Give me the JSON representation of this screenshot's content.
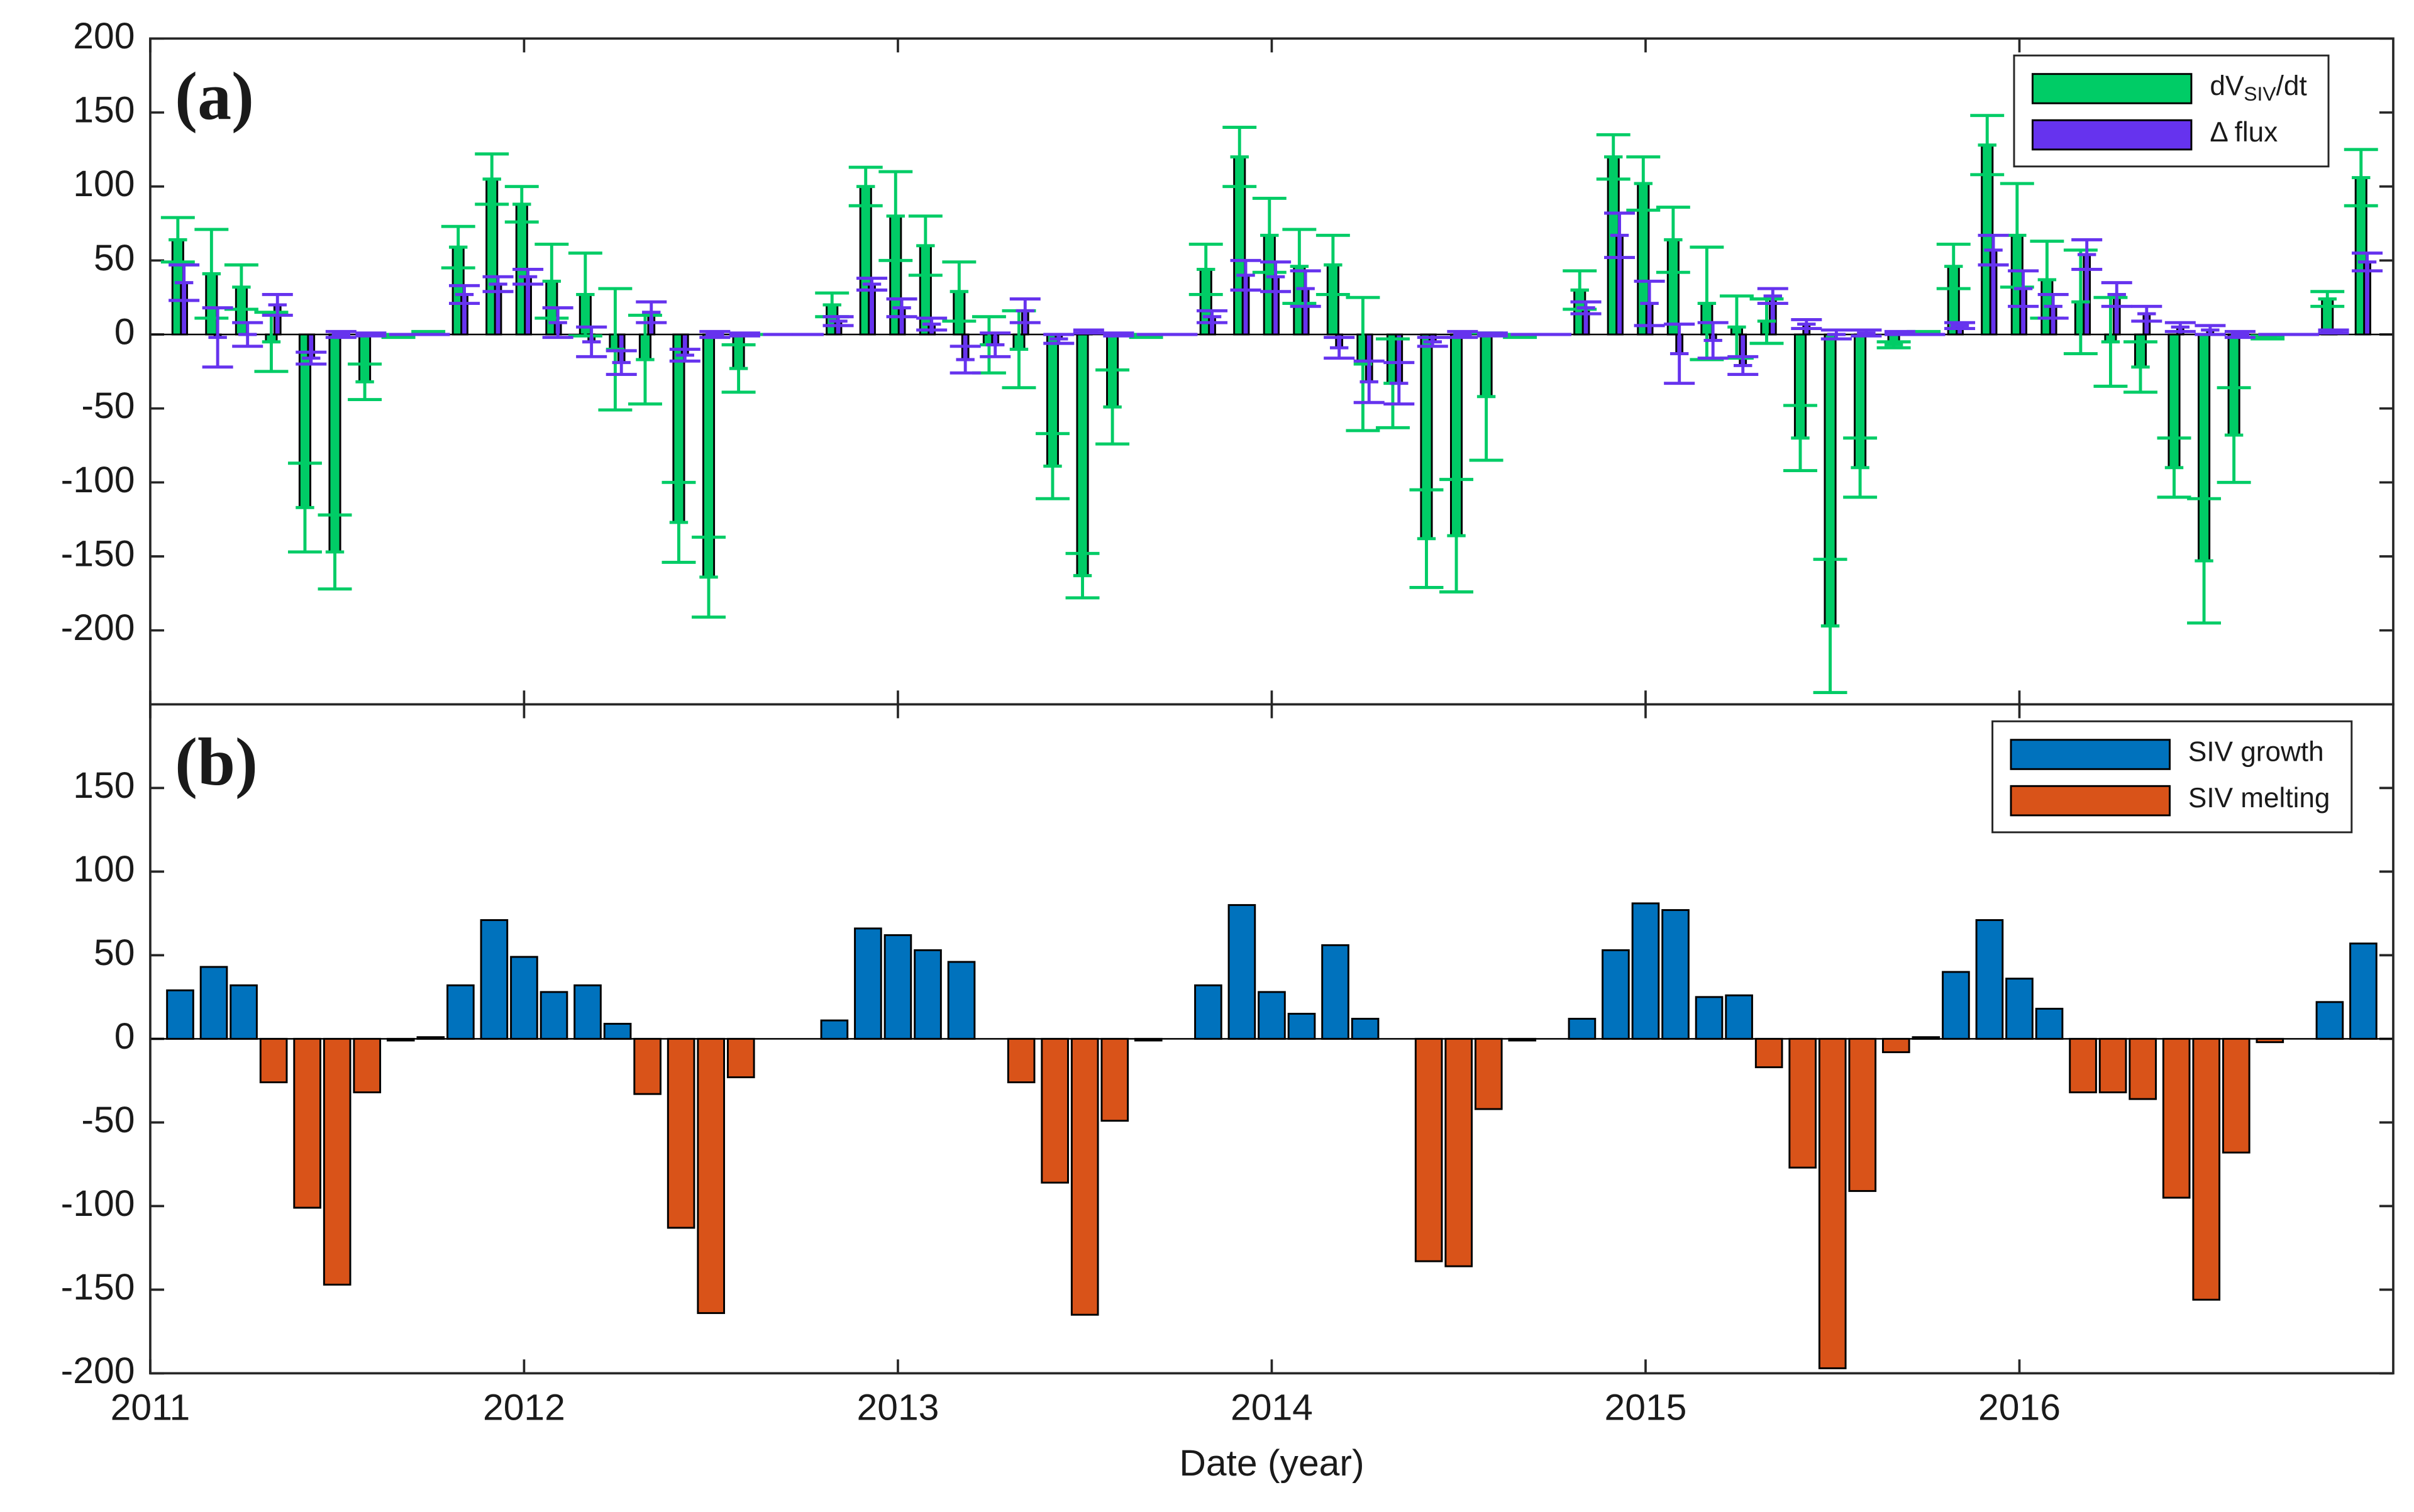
{
  "chart_data": [
    {
      "type": "bar",
      "title": "(a)",
      "legend": "upper right",
      "x": [
        2011.08,
        2011.17,
        2011.25,
        2011.33,
        2011.42,
        2011.5,
        2011.58,
        2011.67,
        2011.75,
        2011.83,
        2011.92,
        2012,
        2012.08,
        2012.17,
        2012.25,
        2012.33,
        2012.42,
        2012.5,
        2012.58,
        2012.67,
        2012.75,
        2012.83,
        2012.92,
        2013,
        2013.08,
        2013.17,
        2013.25,
        2013.33,
        2013.42,
        2013.5,
        2013.58,
        2013.67,
        2013.75,
        2013.83,
        2013.92,
        2014,
        2014.08,
        2014.17,
        2014.25,
        2014.33,
        2014.42,
        2014.5,
        2014.58,
        2014.67,
        2014.75,
        2014.83,
        2014.92,
        2015,
        2015.08,
        2015.17,
        2015.25,
        2015.33,
        2015.42,
        2015.5,
        2015.58,
        2015.67,
        2015.75,
        2015.83,
        2015.92,
        2016,
        2016.08,
        2016.17,
        2016.25,
        2016.33,
        2016.42,
        2016.5,
        2016.58,
        2016.67,
        2016.75,
        2016.83,
        2016.92
      ],
      "xlim": [
        2011,
        2017
      ],
      "ylim": [
        -250,
        200
      ],
      "yticks": [
        -200,
        -150,
        -100,
        -50,
        0,
        50,
        100,
        150,
        200
      ],
      "series": [
        {
          "name": "dVSIV/dt",
          "color": "#00cc66",
          "values": [
            64,
            41,
            32,
            -5,
            -117,
            -147,
            -32,
            -1,
            1,
            59,
            105,
            88,
            36,
            27,
            -10,
            -17,
            -127,
            -164,
            -23,
            0,
            0,
            20,
            100,
            80,
            60,
            29,
            -7,
            -10,
            -89,
            -163,
            -49,
            -1,
            0,
            44,
            120,
            67,
            46,
            47,
            -20,
            -33,
            -138,
            -136,
            -42,
            -1,
            0,
            30,
            120,
            102,
            64,
            21,
            5,
            9,
            -70,
            -197,
            -90,
            -7,
            1,
            46,
            128,
            67,
            37,
            22,
            -5,
            -22,
            -90,
            -153,
            -68,
            -2,
            0,
            24,
            106
          ],
          "errors": [
            15,
            30,
            15,
            20,
            30,
            25,
            12,
            1,
            1,
            14,
            17,
            12,
            25,
            28,
            41,
            30,
            27,
            27,
            16,
            0,
            0,
            8,
            13,
            30,
            20,
            20,
            19,
            26,
            22,
            15,
            25,
            1,
            0,
            17,
            20,
            25,
            25,
            20,
            45,
            30,
            33,
            38,
            43,
            1,
            0,
            13,
            15,
            18,
            22,
            38,
            21,
            15,
            22,
            45,
            20,
            2,
            1,
            15,
            20,
            35,
            26,
            35,
            30,
            17,
            20,
            42,
            32,
            1,
            0,
            5,
            19
          ]
        },
        {
          "name": "Δ flux",
          "color": "#6633ee",
          "values": [
            35,
            -2,
            0,
            20,
            -16,
            0,
            0,
            0,
            0,
            27,
            34,
            39,
            8,
            -5,
            -19,
            15,
            -14,
            0,
            0,
            0,
            0,
            9,
            34,
            18,
            7,
            -17,
            -7,
            16,
            -3,
            2,
            0,
            0,
            0,
            12,
            40,
            39,
            31,
            -9,
            -32,
            -33,
            -5,
            0,
            0,
            0,
            0,
            18,
            67,
            21,
            -13,
            -4,
            -21,
            26,
            7,
            0,
            1,
            1,
            0,
            6,
            57,
            31,
            19,
            54,
            27,
            14,
            5,
            3,
            0,
            0,
            0,
            2,
            49
          ],
          "errors": [
            12,
            20,
            8,
            7,
            4,
            2,
            1,
            0,
            0,
            6,
            5,
            5,
            10,
            10,
            8,
            7,
            4,
            2,
            1,
            0,
            0,
            3,
            4,
            6,
            4,
            9,
            8,
            8,
            3,
            1,
            1,
            0,
            0,
            4,
            10,
            10,
            12,
            7,
            14,
            14,
            3,
            2,
            1,
            0,
            0,
            4,
            15,
            15,
            20,
            12,
            6,
            5,
            3,
            3,
            2,
            1,
            0,
            2,
            10,
            12,
            8,
            10,
            8,
            5,
            3,
            3,
            2,
            0,
            0,
            1,
            6
          ]
        }
      ]
    },
    {
      "type": "bar",
      "title": "(b)",
      "legend": "upper right",
      "x_label": "Date (year)",
      "x": [
        2011.08,
        2011.17,
        2011.25,
        2011.33,
        2011.42,
        2011.5,
        2011.58,
        2011.67,
        2011.75,
        2011.83,
        2011.92,
        2012,
        2012.08,
        2012.17,
        2012.25,
        2012.33,
        2012.42,
        2012.5,
        2012.58,
        2012.67,
        2012.75,
        2012.83,
        2012.92,
        2013,
        2013.08,
        2013.17,
        2013.25,
        2013.33,
        2013.42,
        2013.5,
        2013.58,
        2013.67,
        2013.75,
        2013.83,
        2013.92,
        2014,
        2014.08,
        2014.17,
        2014.25,
        2014.33,
        2014.42,
        2014.5,
        2014.58,
        2014.67,
        2014.75,
        2014.83,
        2014.92,
        2015,
        2015.08,
        2015.17,
        2015.25,
        2015.33,
        2015.42,
        2015.5,
        2015.58,
        2015.67,
        2015.75,
        2015.83,
        2015.92,
        2016,
        2016.08,
        2016.17,
        2016.25,
        2016.33,
        2016.42,
        2016.5,
        2016.58,
        2016.67,
        2016.75,
        2016.83,
        2016.92
      ],
      "xlim": [
        2011,
        2017
      ],
      "xticks": [
        2011,
        2012,
        2013,
        2014,
        2015,
        2016
      ],
      "ylim": [
        -200,
        200
      ],
      "yticks": [
        -200,
        -150,
        -100,
        -50,
        0,
        50,
        100,
        150
      ],
      "series": [
        {
          "name": "SIV growth",
          "color": "#0072bd",
          "values": [
            29,
            43,
            32,
            null,
            null,
            null,
            null,
            null,
            1,
            32,
            71,
            49,
            28,
            32,
            9,
            null,
            null,
            null,
            null,
            0,
            0,
            11,
            66,
            62,
            53,
            46,
            0,
            null,
            null,
            null,
            null,
            null,
            0,
            32,
            80,
            28,
            15,
            56,
            12,
            0,
            null,
            null,
            null,
            null,
            0,
            12,
            53,
            81,
            77,
            25,
            26,
            null,
            null,
            null,
            null,
            null,
            1,
            40,
            71,
            36,
            18,
            null,
            null,
            null,
            null,
            null,
            null,
            null,
            0,
            22,
            57
          ]
        },
        {
          "name": "SIV melting",
          "color": "#d95319",
          "values": [
            null,
            null,
            null,
            -26,
            -101,
            -147,
            -32,
            -1,
            null,
            null,
            null,
            null,
            null,
            null,
            null,
            -33,
            -113,
            -164,
            -23,
            null,
            null,
            null,
            null,
            null,
            null,
            null,
            null,
            -26,
            -86,
            -165,
            -49,
            -1,
            null,
            null,
            null,
            null,
            null,
            null,
            null,
            null,
            -133,
            -136,
            -42,
            -1,
            null,
            null,
            null,
            null,
            null,
            null,
            null,
            -17,
            -77,
            -197,
            -91,
            -8,
            null,
            null,
            null,
            null,
            null,
            -32,
            -32,
            -36,
            -95,
            -156,
            -68,
            -2,
            null,
            null,
            null
          ]
        }
      ]
    }
  ]
}
